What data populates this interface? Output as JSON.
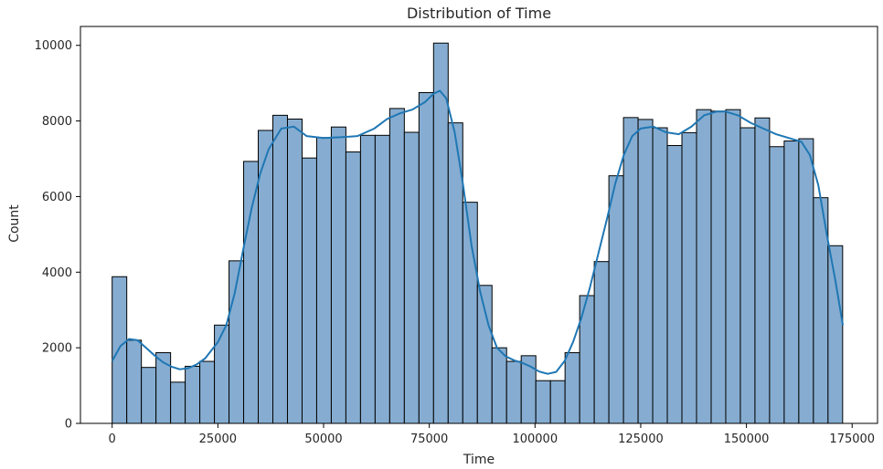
{
  "chart_data": {
    "type": "bar",
    "title": "Distribution of Time",
    "xlabel": "Time",
    "ylabel": "Count",
    "xlim": [
      -7500,
      181000
    ],
    "ylim": [
      0,
      10500
    ],
    "xticks": [
      0,
      25000,
      50000,
      75000,
      100000,
      125000,
      150000,
      175000
    ],
    "yticks": [
      0,
      2000,
      4000,
      6000,
      8000,
      10000
    ],
    "bin_start": 0,
    "bin_width": 3455,
    "counts": [
      3880,
      2200,
      1480,
      1870,
      1090,
      1510,
      1640,
      2600,
      4300,
      6930,
      7750,
      8150,
      8050,
      7020,
      7560,
      7840,
      7180,
      7620,
      7620,
      8330,
      7700,
      8750,
      10060,
      7950,
      5850,
      3650,
      2000,
      1640,
      1790,
      1130,
      1130,
      1870,
      3380,
      4280,
      6550,
      8090,
      8040,
      7820,
      7350,
      7690,
      8300,
      8260,
      8300,
      7820,
      8080,
      7320,
      7470,
      7530,
      5970,
      4700
    ],
    "kde": {
      "x": [
        0,
        2000,
        4000,
        6000,
        8000,
        10000,
        12000,
        14000,
        16000,
        18000,
        20000,
        22000,
        25000,
        27000,
        29000,
        31000,
        33000,
        35000,
        37000,
        40000,
        43000,
        46000,
        50000,
        54000,
        58000,
        62000,
        65000,
        68000,
        71000,
        74000,
        76000,
        77500,
        79000,
        81000,
        83000,
        85000,
        87000,
        89000,
        91000,
        93000,
        95000,
        97000,
        99000,
        101000,
        103000,
        105000,
        107000,
        109000,
        111000,
        113000,
        115000,
        117000,
        119000,
        121000,
        123000,
        125000,
        128000,
        131000,
        134000,
        137000,
        140000,
        143000,
        145000,
        148000,
        151000,
        154000,
        157000,
        160000,
        163000,
        165000,
        167000,
        169000,
        171000,
        172800
      ],
      "y": [
        1650,
        2050,
        2230,
        2200,
        2000,
        1800,
        1620,
        1500,
        1430,
        1460,
        1560,
        1720,
        2150,
        2600,
        3450,
        4600,
        5700,
        6600,
        7250,
        7800,
        7850,
        7600,
        7550,
        7570,
        7600,
        7800,
        8050,
        8200,
        8300,
        8500,
        8720,
        8800,
        8600,
        7700,
        6300,
        4700,
        3500,
        2600,
        2000,
        1780,
        1670,
        1600,
        1500,
        1370,
        1310,
        1360,
        1650,
        2150,
        2800,
        3600,
        4500,
        5400,
        6350,
        7100,
        7600,
        7800,
        7850,
        7700,
        7650,
        7850,
        8150,
        8250,
        8250,
        8150,
        7950,
        7800,
        7650,
        7550,
        7450,
        7100,
        6300,
        5000,
        3800,
        2600
      ]
    }
  },
  "colors": {
    "bar_fill": "#86add1",
    "bar_edge": "#000000",
    "kde_line": "#1f77b4",
    "axis": "#000000",
    "text": "#262626"
  }
}
